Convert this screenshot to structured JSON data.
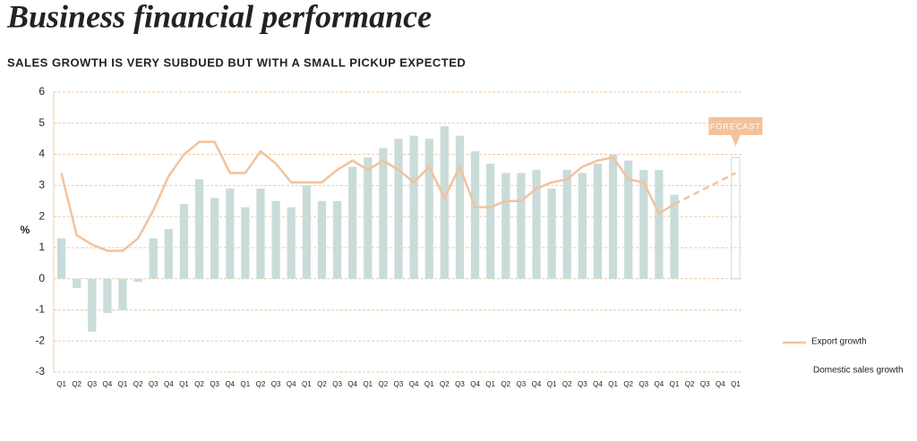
{
  "chart_data": {
    "type": "bar-line",
    "title": "Business financial performance",
    "subtitle": "SALES GROWTH IS VERY SUBDUED BUT WITH A SMALL PICKUP EXPECTED",
    "y_label": "%",
    "annotation": "FORECAST",
    "categories": [
      "Q1",
      "Q2",
      "Q3",
      "Q4",
      "Q1",
      "Q2",
      "Q3",
      "Q4",
      "Q1",
      "Q2",
      "Q3",
      "Q4",
      "Q1",
      "Q2",
      "Q3",
      "Q4",
      "Q1",
      "Q2",
      "Q3",
      "Q4",
      "Q1",
      "Q2",
      "Q3",
      "Q4",
      "Q1",
      "Q2",
      "Q3",
      "Q4",
      "Q1",
      "Q2",
      "Q3",
      "Q4",
      "Q1",
      "Q2",
      "Q3",
      "Q4",
      "Q1",
      "Q2",
      "Q3",
      "Q4",
      "Q1",
      "Q2",
      "Q3",
      "Q4",
      "Q1"
    ],
    "series": [
      {
        "name": "Export growth",
        "color": "#f2c29c",
        "values": [
          3.4,
          1.4,
          1.1,
          0.9,
          0.9,
          1.3,
          2.2,
          3.3,
          4.0,
          4.4,
          4.4,
          3.4,
          3.4,
          4.1,
          3.7,
          3.1,
          3.1,
          3.1,
          3.5,
          3.8,
          3.5,
          3.8,
          3.5,
          3.1,
          3.6,
          2.6,
          3.6,
          2.3,
          2.3,
          2.5,
          2.5,
          2.9,
          3.1,
          3.2,
          3.6,
          3.8,
          3.9,
          3.2,
          3.1,
          2.1,
          2.4,
          null,
          null,
          null,
          null
        ]
      },
      {
        "name": "Domestic sales growth",
        "color": "#c9dcd9",
        "values": [
          1.3,
          -0.3,
          -1.7,
          -1.1,
          -1.0,
          -0.1,
          1.3,
          1.6,
          2.4,
          3.2,
          2.6,
          2.9,
          2.3,
          2.9,
          2.5,
          2.3,
          3.0,
          2.5,
          2.5,
          3.6,
          3.9,
          4.2,
          4.5,
          4.6,
          4.5,
          4.9,
          4.6,
          4.1,
          3.7,
          3.4,
          3.4,
          3.5,
          2.9,
          3.5,
          3.4,
          3.7,
          4.0,
          3.8,
          3.5,
          3.5,
          2.7,
          null,
          null,
          null,
          3.9
        ]
      }
    ],
    "forecast": [
      null,
      null,
      null,
      null,
      null,
      null,
      null,
      null,
      null,
      null,
      null,
      null,
      null,
      null,
      null,
      null,
      null,
      null,
      null,
      null,
      null,
      null,
      null,
      null,
      null,
      null,
      null,
      null,
      null,
      null,
      null,
      null,
      null,
      null,
      null,
      null,
      null,
      null,
      null,
      null,
      2.4,
      2.65,
      2.9,
      3.15,
      3.4
    ],
    "ylim": [
      -3,
      6
    ],
    "yticks": [
      -3,
      -2,
      -1,
      0,
      1,
      2,
      3,
      4,
      5,
      6
    ],
    "grid": true
  }
}
